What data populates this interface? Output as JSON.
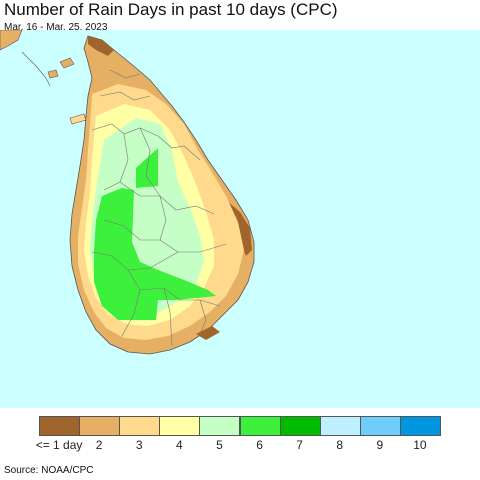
{
  "title": "Number of Rain Days in past 10 days (CPC)",
  "subtitle": "Mar. 16 - Mar. 25, 2023",
  "source": "Source: NOAA/CPC",
  "colors": {
    "ocean": "#ccffff",
    "land_outline": "#555555"
  },
  "legend": {
    "bins": [
      {
        "label": "<= 1 day",
        "color": "#a0642d"
      },
      {
        "label": "2",
        "color": "#e6b064"
      },
      {
        "label": "3",
        "color": "#ffd98c"
      },
      {
        "label": "4",
        "color": "#ffffa6"
      },
      {
        "label": "5",
        "color": "#c6ffc6"
      },
      {
        "label": "6",
        "color": "#3cf03c"
      },
      {
        "label": "7",
        "color": "#00bb00"
      },
      {
        "label": "8",
        "color": "#bff0ff"
      },
      {
        "label": "9",
        "color": "#6ecdfa"
      },
      {
        "label": "10",
        "color": "#0096e0"
      }
    ]
  }
}
